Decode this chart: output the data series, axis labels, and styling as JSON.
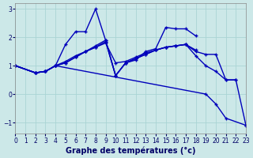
{
  "title": "Graphe des températures (°c)",
  "background_color": "#cce8e8",
  "grid_color": "#aad4d4",
  "line_color": "#0000bb",
  "ylim": [
    -1.4,
    3.2
  ],
  "xlim": [
    0,
    23
  ],
  "yticks": [
    -1,
    0,
    1,
    2,
    3
  ],
  "xticks": [
    0,
    1,
    2,
    3,
    4,
    5,
    6,
    7,
    8,
    9,
    10,
    11,
    12,
    13,
    14,
    15,
    16,
    17,
    18,
    19,
    20,
    21,
    22,
    23
  ],
  "lines": [
    {
      "x": [
        0,
        2,
        3,
        4,
        5,
        6,
        7,
        8,
        9,
        10,
        11,
        12,
        13,
        14,
        15,
        16,
        17,
        18
      ],
      "y": [
        1.0,
        0.75,
        0.8,
        1.0,
        1.1,
        1.3,
        1.5,
        1.65,
        1.8,
        1.1,
        1.15,
        1.3,
        1.45,
        1.55,
        1.65,
        1.7,
        1.75,
        1.55
      ]
    },
    {
      "x": [
        0,
        2,
        3,
        4,
        5,
        6,
        7,
        8,
        9,
        10,
        11,
        12,
        13,
        14,
        15,
        16,
        17,
        18
      ],
      "y": [
        1.0,
        0.75,
        0.8,
        1.0,
        1.75,
        2.2,
        2.2,
        3.0,
        1.9,
        0.65,
        1.1,
        1.2,
        1.5,
        1.6,
        2.35,
        2.3,
        2.3,
        2.05
      ]
    },
    {
      "x": [
        0,
        2,
        3,
        4,
        5,
        6,
        7,
        8,
        9,
        10,
        11,
        12,
        13,
        14,
        15,
        16,
        17,
        18,
        19,
        20,
        21,
        22
      ],
      "y": [
        1.0,
        0.75,
        0.8,
        1.0,
        1.15,
        1.35,
        1.5,
        1.7,
        1.9,
        0.65,
        1.1,
        1.25,
        1.4,
        1.55,
        1.65,
        1.7,
        1.75,
        1.5,
        1.4,
        1.4,
        0.5,
        0.5
      ]
    },
    {
      "x": [
        0,
        2,
        3,
        4,
        5,
        6,
        7,
        8,
        9,
        10,
        11,
        12,
        13,
        14,
        15,
        16,
        17,
        18,
        19,
        20,
        21,
        22,
        23
      ],
      "y": [
        1.0,
        0.75,
        0.8,
        1.0,
        1.1,
        1.3,
        1.5,
        1.65,
        1.85,
        0.65,
        1.1,
        1.25,
        1.4,
        1.55,
        1.65,
        1.7,
        1.75,
        1.35,
        1.0,
        0.8,
        0.5,
        0.5,
        -1.1
      ]
    },
    {
      "x": [
        0,
        2,
        3,
        4,
        19,
        20,
        21,
        23
      ],
      "y": [
        1.0,
        0.75,
        0.8,
        1.0,
        0.0,
        -0.35,
        -0.85,
        -1.1
      ]
    }
  ],
  "xlabel_fontsize": 7,
  "tick_fontsize": 5.5,
  "ylabel_fontsize": 6,
  "figsize": [
    3.2,
    2.0
  ],
  "dpi": 100
}
